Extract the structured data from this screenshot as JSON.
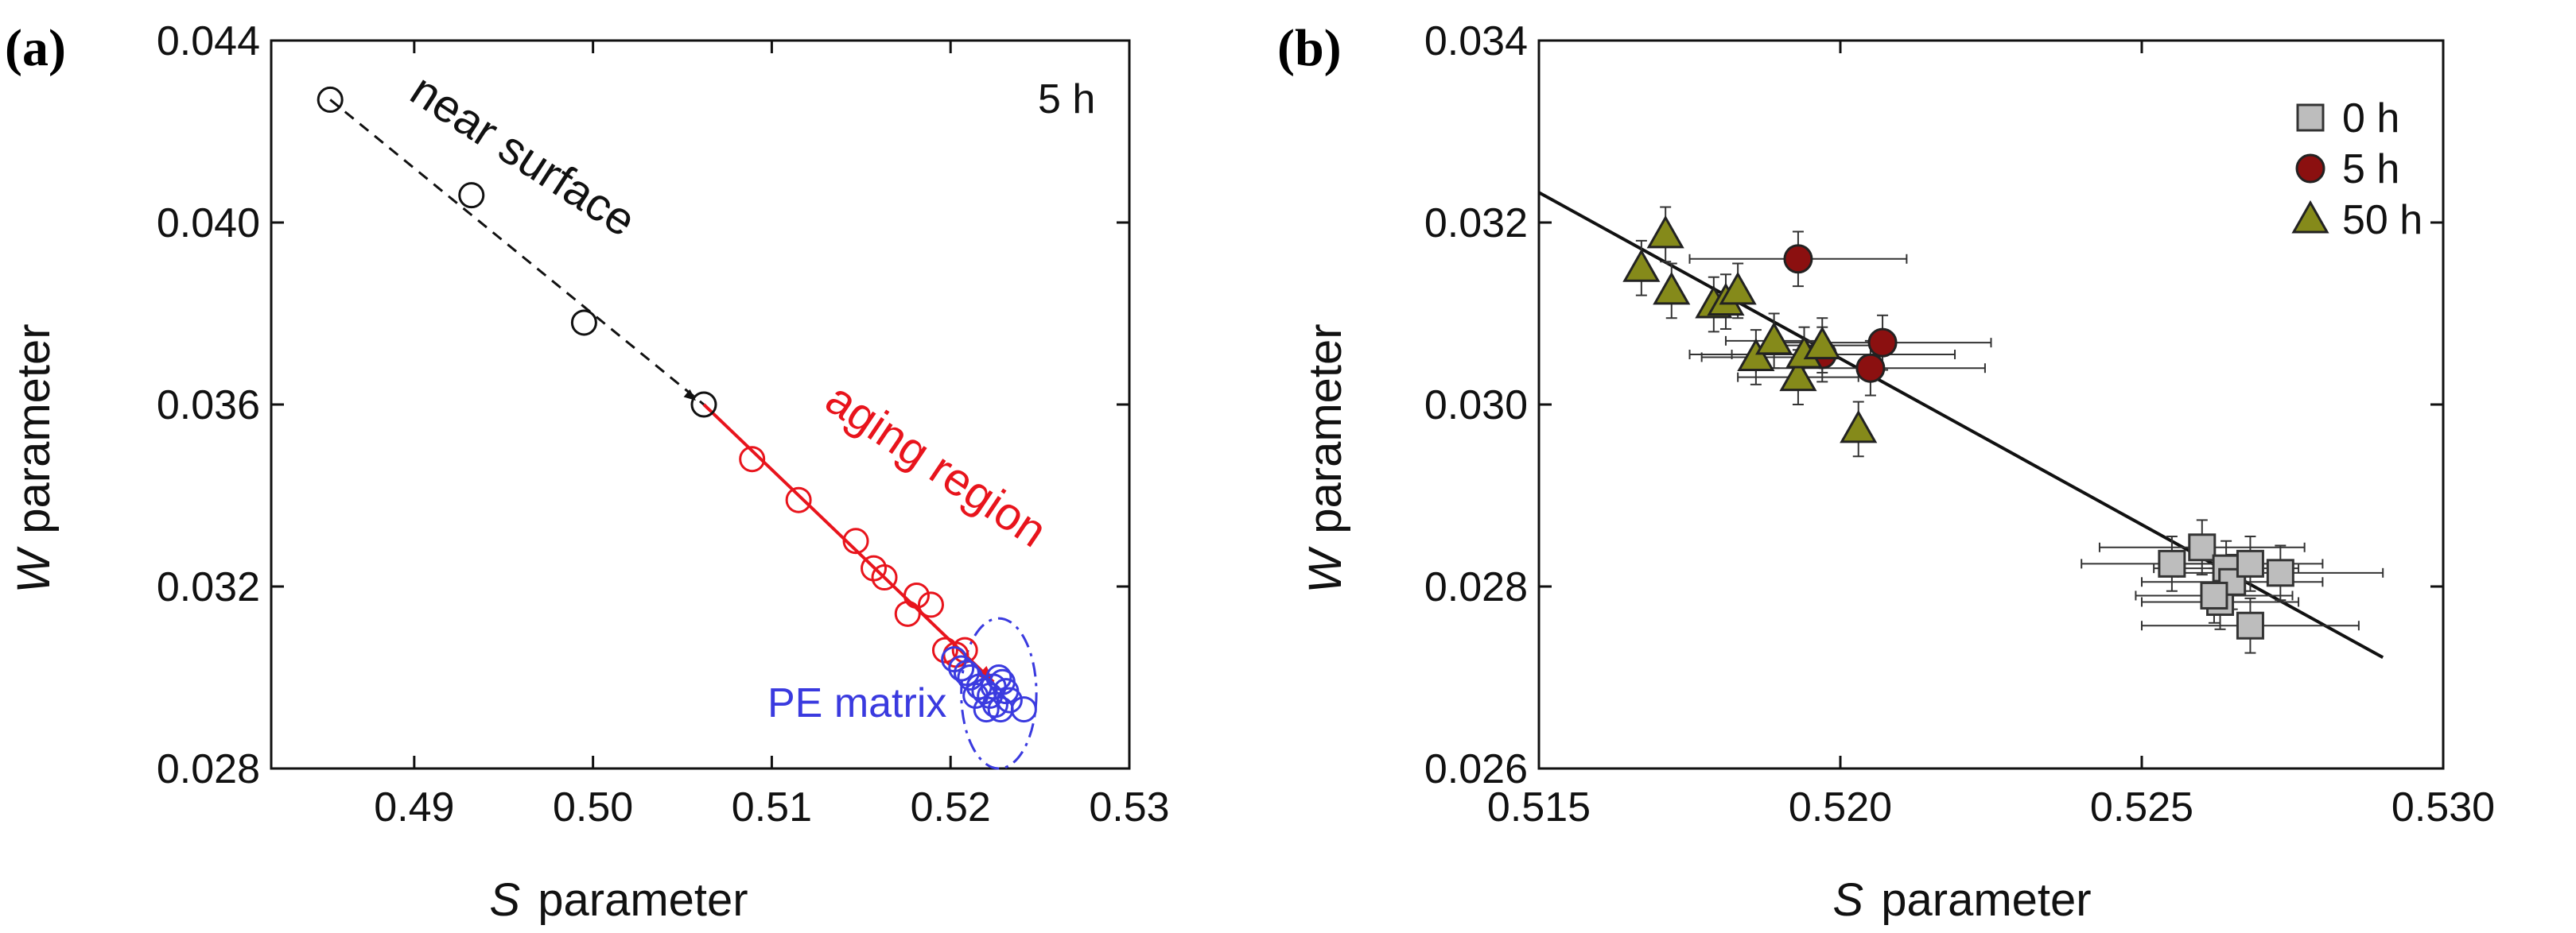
{
  "chart_data": [
    {
      "panel": "(a)",
      "type": "scatter",
      "xlabel_symbol": "S",
      "xlabel_text": "parameter",
      "ylabel_symbol": "W",
      "ylabel_text": "parameter",
      "xlim": [
        0.482,
        0.53
      ],
      "ylim": [
        0.028,
        0.044
      ],
      "xticks": [
        0.49,
        0.5,
        0.51,
        0.52,
        0.53
      ],
      "xtick_labels": [
        "0.49",
        "0.50",
        "0.51",
        "0.52",
        "0.53"
      ],
      "yticks": [
        0.028,
        0.032,
        0.036,
        0.04,
        0.044
      ],
      "ytick_labels": [
        "0.028",
        "0.032",
        "0.036",
        "0.040",
        "0.044"
      ],
      "annotations": {
        "time_label": "5 h",
        "near_surface": "near surface",
        "aging_region": "aging region",
        "pe_matrix": "PE matrix"
      },
      "colors": {
        "near": "#111111",
        "aging": "#e8141c",
        "pe": "#3a3adf"
      },
      "series": [
        {
          "name": "near surface",
          "x": [
            0.4853,
            0.4932,
            0.4995,
            0.5062
          ],
          "y": [
            0.0427,
            0.0406,
            0.0378,
            0.036
          ]
        },
        {
          "name": "aging region",
          "x": [
            0.5089,
            0.5115,
            0.5147,
            0.5157,
            0.5163,
            0.5181,
            0.5176,
            0.5189,
            0.5197,
            0.5203,
            0.5208
          ],
          "y": [
            0.0348,
            0.0339,
            0.033,
            0.0324,
            0.0322,
            0.0318,
            0.0314,
            0.0316,
            0.0306,
            0.0305,
            0.0306
          ]
        },
        {
          "name": "PE matrix",
          "x": [
            0.5202,
            0.5206,
            0.5211,
            0.5214,
            0.5219,
            0.5222,
            0.5224,
            0.5227,
            0.5229,
            0.5231,
            0.5225,
            0.522,
            0.5228,
            0.5233,
            0.5241,
            0.5209,
            0.5216
          ],
          "y": [
            0.0304,
            0.0302,
            0.03,
            0.0296,
            0.0297,
            0.0296,
            0.0298,
            0.03,
            0.0299,
            0.0297,
            0.0294,
            0.0293,
            0.0293,
            0.0295,
            0.0293,
            0.0301,
            0.0298
          ]
        }
      ],
      "lines": [
        {
          "name": "near-surface trend",
          "x": [
            0.4853,
            0.5062
          ],
          "y": [
            0.0427,
            0.036
          ],
          "style": "dashed"
        },
        {
          "name": "aging trend",
          "x": [
            0.5062,
            0.5224
          ],
          "y": [
            0.036,
            0.0299
          ],
          "style": "solid"
        }
      ],
      "circle_highlight": {
        "cx": 0.5227,
        "cy": 0.02965,
        "rx": 0.0021,
        "ry": 0.00165
      }
    },
    {
      "panel": "(b)",
      "type": "scatter",
      "xlabel_symbol": "S",
      "xlabel_text": "parameter",
      "ylabel_symbol": "W",
      "ylabel_text": "parameter",
      "xlim": [
        0.515,
        0.53
      ],
      "ylim": [
        0.026,
        0.034
      ],
      "xticks": [
        0.515,
        0.52,
        0.525,
        0.53
      ],
      "xtick_labels": [
        "0.515",
        "0.520",
        "0.525",
        "0.530"
      ],
      "yticks": [
        0.026,
        0.028,
        0.03,
        0.032,
        0.034
      ],
      "ytick_labels": [
        "0.026",
        "0.028",
        "0.030",
        "0.032",
        "0.034"
      ],
      "legend": [
        {
          "label": "0 h",
          "marker": "square",
          "color": "#bdbdbd"
        },
        {
          "label": "5 h",
          "marker": "circle",
          "color": "#8b1010"
        },
        {
          "label": "50 h",
          "marker": "triangle",
          "color": "#858a1a"
        }
      ],
      "fit_line": {
        "x": [
          0.515,
          0.529
        ],
        "y": [
          0.03233,
          0.02722
        ]
      },
      "series": [
        {
          "name": "0 h",
          "x": [
            0.5255,
            0.526,
            0.5263,
            0.5264,
            0.5265,
            0.5268,
            0.5273,
            0.5262,
            0.5268
          ],
          "y": [
            0.02825,
            0.02843,
            0.02783,
            0.0282,
            0.02805,
            0.02825,
            0.02815,
            0.0279,
            0.02757
          ],
          "xerr": [
            0.0015,
            0.0017,
            0.0013,
            0.0012,
            0.0015,
            0.0012,
            0.0017,
            0.0013,
            0.0018
          ],
          "yerr": [
            0.0003,
            0.0003,
            0.0003,
            0.0003,
            0.0003,
            0.0003,
            0.0003,
            0.0003,
            0.0003
          ]
        },
        {
          "name": "5 h",
          "x": [
            0.5193,
            0.5197,
            0.5207,
            0.5205
          ],
          "y": [
            0.0316,
            0.03055,
            0.03068,
            0.0304
          ],
          "xerr": [
            0.0018,
            0.0022,
            0.0018,
            0.0019
          ],
          "yerr": [
            0.0003,
            0.0003,
            0.0003,
            0.0003
          ]
        },
        {
          "name": "50 h",
          "x": [
            0.5167,
            0.5171,
            0.5172,
            0.5179,
            0.5181,
            0.5183,
            0.5186,
            0.5189,
            0.5193,
            0.5194,
            0.5197,
            0.5203
          ],
          "y": [
            0.0315,
            0.03187,
            0.03125,
            0.0311,
            0.03113,
            0.03125,
            0.03052,
            0.0307,
            0.0303,
            0.03055,
            0.03065,
            0.02973
          ],
          "xerr": [
            0,
            0,
            0,
            0,
            0,
            0,
            0.0009,
            0.0008,
            0.001,
            0.0012,
            0.0009,
            0
          ],
          "yerr": [
            0.0003,
            0.0003,
            0.0003,
            0.0003,
            0.0003,
            0.0003,
            0.0003,
            0.0003,
            0.0003,
            0.0003,
            0.0003,
            0.0003
          ]
        }
      ]
    }
  ]
}
